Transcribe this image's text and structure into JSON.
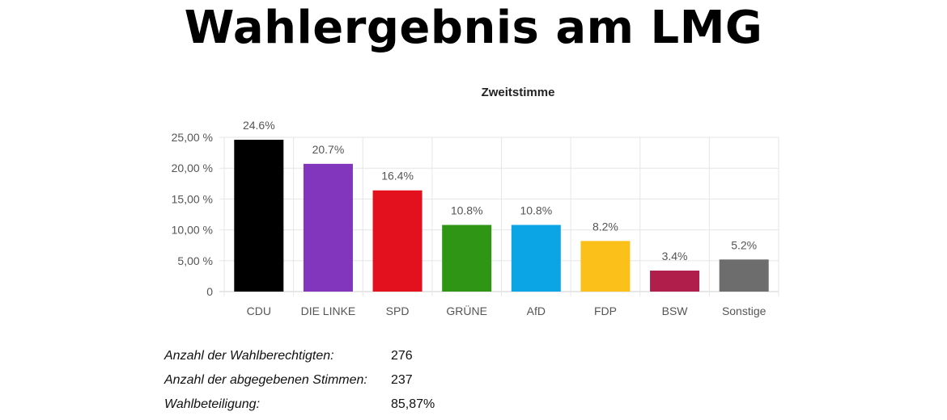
{
  "header": {
    "title": "Wahlergebnis am LMG"
  },
  "chart_data": {
    "type": "bar",
    "title": "Zweitstimme",
    "categories": [
      "CDU",
      "DIE LINKE",
      "SPD",
      "GRÜNE",
      "AfD",
      "FDP",
      "BSW",
      "Sonstige"
    ],
    "values": [
      24.6,
      20.7,
      16.4,
      10.8,
      10.8,
      8.2,
      3.4,
      5.2
    ],
    "value_labels": [
      "24.6%",
      "20.7%",
      "16.4%",
      "10.8%",
      "10.8%",
      "8.2%",
      "3.4%",
      "5.2%"
    ],
    "colors": [
      "#000000",
      "#8235bd",
      "#e3101e",
      "#2e9614",
      "#0ba4e4",
      "#fbc11a",
      "#b01f4c",
      "#6d6d6d"
    ],
    "ylim": [
      0,
      25
    ],
    "yticks": [
      0,
      5,
      10,
      15,
      20,
      25
    ],
    "ytick_labels": [
      "0",
      "5,00 %",
      "10,00 %",
      "15,00 %",
      "20,00 %",
      "25,00 %"
    ],
    "xlabel": "",
    "ylabel": "",
    "grid": true
  },
  "stats": [
    {
      "label": "Anzahl der Wahlberechtigten:",
      "value": "276"
    },
    {
      "label": "Anzahl der abgegebenen Stimmen:",
      "value": "237"
    },
    {
      "label": "Wahlbeteiligung:",
      "value": "85,87%"
    }
  ]
}
